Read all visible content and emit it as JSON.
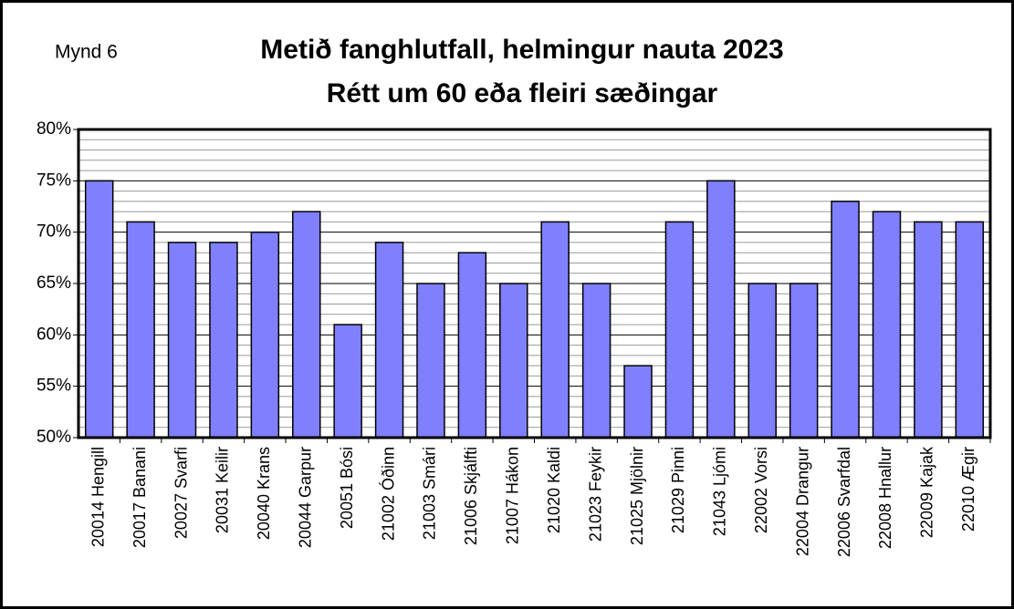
{
  "chart_data": {
    "type": "bar",
    "label": "Mynd 6",
    "title": "Metið fanghlutfall, helmingur nauta 2023",
    "subtitle": "Rétt um 60 eða fleiri sæðingar",
    "categories": [
      "20014 Hengill",
      "20017 Banani",
      "20027 Svarfi",
      "20031 Keilir",
      "20040 Krans",
      "20044 Garpur",
      "20051 Bósi",
      "21002 Óðinn",
      "21003 Smári",
      "21006 Skjálfti",
      "21007 Hákon",
      "21020 Kaldi",
      "21023 Feykir",
      "21025 Mjölnir",
      "21029 Pinni",
      "21043 Ljómi",
      "22002 Vorsi",
      "22004 Drangur",
      "22006 Svarfdal",
      "22008 Hnallur",
      "22009 Kajak",
      "22010 Ægir"
    ],
    "values": [
      75,
      71,
      69,
      69,
      70,
      72,
      61,
      69,
      65,
      68,
      65,
      71,
      65,
      57,
      71,
      75,
      65,
      65,
      73,
      72,
      71,
      71
    ],
    "color": "#8080ff",
    "ylim": [
      50,
      80
    ],
    "yticks": [
      {
        "value": 50,
        "label": "50%"
      },
      {
        "value": 55,
        "label": "55%"
      },
      {
        "value": 60,
        "label": "60%"
      },
      {
        "value": 65,
        "label": "65%"
      },
      {
        "value": 70,
        "label": "70%"
      },
      {
        "value": 75,
        "label": "75%"
      },
      {
        "value": 80,
        "label": "80%"
      }
    ],
    "yminorticks": [
      51,
      52,
      53,
      54,
      56,
      57,
      58,
      59,
      61,
      62,
      63,
      64,
      66,
      67,
      68,
      69,
      71,
      72,
      73,
      74,
      76,
      77,
      78,
      79
    ],
    "grid": true
  }
}
